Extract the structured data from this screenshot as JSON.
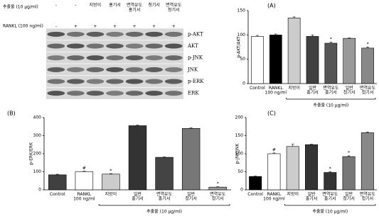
{
  "blot": {
    "header_rows": [
      {
        "label": "추출물 (10 μg/ml)",
        "lanes": [
          "-",
          "-",
          "지방이",
          "홍기서",
          "면역유도\n홍기서",
          "청기서",
          "면역유도\n청기서"
        ]
      },
      {
        "label": "RANKL (100 ng/ml)",
        "lanes": [
          "-",
          "+",
          "+",
          "+",
          "+",
          "+",
          "+"
        ]
      }
    ],
    "rows": [
      "p-AKT",
      "AKT",
      "p-JNK",
      "JNK",
      "p-ERK",
      "ERK"
    ]
  },
  "chart_data": [
    {
      "type": "bar",
      "panel": "(A)",
      "y_label": "p-AKT/AKT",
      "categories": [
        "Control",
        "RANKL\n100 ng/ml",
        "지방이",
        "일반\n홍기서",
        "면역유도\n홍기서",
        "일반\n청기서",
        "면역유도\n청기서"
      ],
      "values": [
        97,
        100,
        135,
        97,
        83,
        93,
        73
      ],
      "errors": [
        2,
        2,
        2,
        3,
        2,
        1,
        2
      ],
      "colors": [
        "#ffffff",
        "#000000",
        "#cccccc",
        "#404040",
        "#555555",
        "#999999",
        "#888888"
      ],
      "annotations": [
        null,
        null,
        null,
        null,
        "*",
        null,
        "*"
      ],
      "bracket_label": "추출물 (10 μg/ml)",
      "ylim": [
        0,
        150
      ],
      "yticks": [
        0,
        50,
        100,
        150
      ]
    },
    {
      "type": "bar",
      "panel": "(B)",
      "y_label": "p-ERK/ERK",
      "categories": [
        "Control",
        "RANKL\n100 ng/ml",
        "지방이",
        "일반\n홍기서",
        "면역유도\n홍기서",
        "일반\n청기서",
        "면역유도\n청기서"
      ],
      "values": [
        83,
        100,
        87,
        355,
        180,
        340,
        15
      ],
      "errors": [
        3,
        3,
        2,
        3,
        2,
        3,
        2
      ],
      "colors": [
        "#404040",
        "#ffffff",
        "#cccccc",
        "#333333",
        "#444444",
        "#777777",
        "#999999"
      ],
      "annotations": [
        null,
        "#",
        "*",
        null,
        null,
        null,
        "*"
      ],
      "bracket_label": "추출물 (10 μg/ml)",
      "ylim": [
        0,
        400
      ],
      "yticks": [
        0,
        100,
        200,
        300,
        400
      ]
    },
    {
      "type": "bar",
      "panel": "(C)",
      "y_label": "p-JNK/JNK",
      "categories": [
        "Control",
        "RANKL\n100 ng/ml",
        "지방이",
        "일반\n홍기서",
        "면역유도\n홍기서",
        "일반\n청기서",
        "면역유도\n청기서"
      ],
      "values": [
        37,
        100,
        120,
        125,
        48,
        92,
        158
      ],
      "errors": [
        1,
        2,
        6,
        1,
        2,
        2,
        2
      ],
      "colors": [
        "#000000",
        "#ffffff",
        "#cccccc",
        "#333333",
        "#333333",
        "#777777",
        "#888888"
      ],
      "annotations": [
        null,
        "#",
        null,
        null,
        "*",
        "*",
        null
      ],
      "bracket_label": "추출물 (10 μg/ml)",
      "ylim": [
        0,
        200
      ],
      "yticks": [
        0,
        50,
        100,
        150,
        200
      ]
    }
  ]
}
